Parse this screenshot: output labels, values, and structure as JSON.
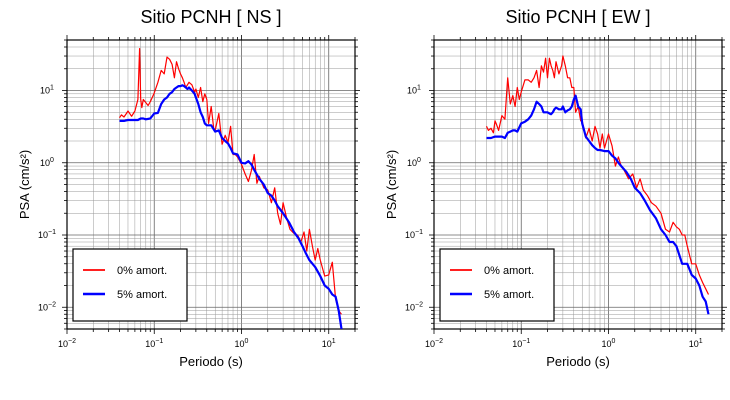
{
  "chart_data": [
    {
      "type": "line",
      "title": "Sitio PCNH [ NS ]",
      "xlabel": "Periodo (s)",
      "ylabel": "PSA (cm/s²)",
      "xscale": "log",
      "yscale": "log",
      "xlim": [
        0.01,
        20
      ],
      "ylim": [
        0.005,
        50
      ],
      "grid": true,
      "legend_position": "bottom-left",
      "x_ticks": [
        {
          "v": 0.01,
          "b": "10",
          "e": "−2"
        },
        {
          "v": 0.1,
          "b": "10",
          "e": "−1"
        },
        {
          "v": 1,
          "b": "10",
          "e": "0"
        },
        {
          "v": 10,
          "b": "10",
          "e": "1"
        }
      ],
      "y_ticks": [
        {
          "v": 0.01,
          "b": "10",
          "e": "−2"
        },
        {
          "v": 0.1,
          "b": "10",
          "e": "−1"
        },
        {
          "v": 1,
          "b": "10",
          "e": "0"
        },
        {
          "v": 10,
          "b": "10",
          "e": "1"
        }
      ],
      "series": [
        {
          "name": "0% amort.",
          "color": "#ff0000",
          "x": [
            0.04,
            0.042,
            0.045,
            0.048,
            0.05,
            0.055,
            0.06,
            0.065,
            0.068,
            0.07,
            0.072,
            0.075,
            0.08,
            0.085,
            0.09,
            0.1,
            0.11,
            0.12,
            0.13,
            0.14,
            0.15,
            0.16,
            0.17,
            0.18,
            0.19,
            0.2,
            0.21,
            0.22,
            0.23,
            0.25,
            0.27,
            0.29,
            0.3,
            0.32,
            0.34,
            0.36,
            0.38,
            0.4,
            0.42,
            0.45,
            0.48,
            0.5,
            0.55,
            0.6,
            0.65,
            0.7,
            0.75,
            0.8,
            0.85,
            0.9,
            1.0,
            1.1,
            1.2,
            1.3,
            1.4,
            1.5,
            1.6,
            1.8,
            2.0,
            2.2,
            2.4,
            2.6,
            2.8,
            3.0,
            3.3,
            3.6,
            4.0,
            4.4,
            4.8,
            5.2,
            5.6,
            6.0,
            6.5,
            7.0,
            7.5,
            8.0,
            9.0,
            10,
            11,
            12,
            13,
            14
          ],
          "y": [
            4.2,
            4.6,
            4.3,
            4.8,
            5.2,
            4.4,
            5.2,
            7.5,
            38,
            7.5,
            5.8,
            7.5,
            6.8,
            6.2,
            7.0,
            9.2,
            13,
            19,
            17,
            29,
            27,
            23,
            15,
            25,
            20,
            17,
            15,
            13,
            11,
            13,
            12,
            9.5,
            10.5,
            8,
            11,
            7,
            9,
            7.5,
            3.5,
            6,
            3.0,
            2.8,
            4.8,
            1.8,
            2.4,
            1.9,
            3.2,
            1.3,
            1.3,
            1.2,
            0.95,
            0.7,
            0.55,
            0.78,
            1.3,
            0.52,
            0.65,
            0.45,
            0.42,
            0.28,
            0.45,
            0.2,
            0.14,
            0.28,
            0.17,
            0.12,
            0.105,
            0.1,
            0.08,
            0.11,
            0.06,
            0.12,
            0.07,
            0.045,
            0.065,
            0.045,
            0.027,
            0.028,
            0.042,
            0.013,
            0.009,
            0.008
          ]
        },
        {
          "name": "5% amort.",
          "color": "#0000ff",
          "x": [
            0.04,
            0.045,
            0.05,
            0.055,
            0.06,
            0.065,
            0.07,
            0.075,
            0.08,
            0.09,
            0.1,
            0.11,
            0.12,
            0.13,
            0.14,
            0.15,
            0.16,
            0.17,
            0.18,
            0.19,
            0.2,
            0.21,
            0.22,
            0.23,
            0.24,
            0.25,
            0.27,
            0.29,
            0.3,
            0.32,
            0.34,
            0.36,
            0.38,
            0.4,
            0.45,
            0.5,
            0.55,
            0.6,
            0.65,
            0.7,
            0.75,
            0.8,
            0.9,
            1.0,
            1.1,
            1.2,
            1.3,
            1.4,
            1.6,
            1.8,
            2.0,
            2.2,
            2.4,
            2.6,
            3.0,
            3.5,
            4.0,
            4.5,
            5.0,
            5.5,
            6.0,
            7.0,
            8.0,
            9.0,
            10,
            11,
            12,
            13,
            14
          ],
          "y": [
            3.8,
            3.8,
            3.9,
            3.9,
            3.9,
            3.9,
            4.1,
            4.1,
            4.0,
            4.1,
            4.8,
            4.9,
            6.5,
            7.5,
            8.0,
            9.0,
            9.5,
            10.5,
            11,
            11.5,
            11.5,
            11.8,
            11.5,
            11.0,
            10.5,
            11.0,
            10.0,
            9.0,
            8.0,
            6.5,
            5.0,
            4.3,
            3.5,
            3.3,
            3.3,
            2.7,
            2.8,
            2.2,
            2.0,
            1.85,
            1.6,
            1.35,
            1.3,
            1.0,
            0.98,
            1.05,
            0.95,
            0.8,
            0.6,
            0.5,
            0.38,
            0.35,
            0.3,
            0.25,
            0.2,
            0.15,
            0.11,
            0.09,
            0.07,
            0.055,
            0.045,
            0.036,
            0.027,
            0.02,
            0.018,
            0.015,
            0.014,
            0.009,
            0.005
          ]
        }
      ]
    },
    {
      "type": "line",
      "title": "Sitio PCNH [ EW ]",
      "xlabel": "Periodo (s)",
      "ylabel": "PSA (cm/s²)",
      "xscale": "log",
      "yscale": "log",
      "xlim": [
        0.01,
        20
      ],
      "ylim": [
        0.005,
        50
      ],
      "grid": true,
      "legend_position": "bottom-left",
      "x_ticks": [
        {
          "v": 0.01,
          "b": "10",
          "e": "−2"
        },
        {
          "v": 0.1,
          "b": "10",
          "e": "−1"
        },
        {
          "v": 1,
          "b": "10",
          "e": "0"
        },
        {
          "v": 10,
          "b": "10",
          "e": "1"
        }
      ],
      "y_ticks": [
        {
          "v": 0.01,
          "b": "10",
          "e": "−2"
        },
        {
          "v": 0.1,
          "b": "10",
          "e": "−1"
        },
        {
          "v": 1,
          "b": "10",
          "e": "0"
        },
        {
          "v": 10,
          "b": "10",
          "e": "1"
        }
      ],
      "series": [
        {
          "name": "0% amort.",
          "color": "#ff0000",
          "x": [
            0.04,
            0.042,
            0.045,
            0.048,
            0.05,
            0.052,
            0.055,
            0.06,
            0.065,
            0.07,
            0.075,
            0.08,
            0.085,
            0.09,
            0.095,
            0.1,
            0.11,
            0.12,
            0.13,
            0.14,
            0.15,
            0.16,
            0.17,
            0.18,
            0.19,
            0.2,
            0.21,
            0.22,
            0.23,
            0.24,
            0.25,
            0.27,
            0.29,
            0.3,
            0.32,
            0.34,
            0.36,
            0.38,
            0.4,
            0.42,
            0.45,
            0.48,
            0.5,
            0.55,
            0.6,
            0.65,
            0.7,
            0.75,
            0.8,
            0.85,
            0.9,
            1.0,
            1.1,
            1.2,
            1.3,
            1.4,
            1.5,
            1.7,
            1.9,
            2.1,
            2.3,
            2.5,
            2.8,
            3.1,
            3.5,
            4.0,
            4.5,
            5.0,
            5.5,
            6.0,
            6.5,
            7.0,
            7.5,
            8.0,
            9.0,
            10,
            11,
            12,
            13,
            14
          ],
          "y": [
            3.2,
            2.8,
            3.0,
            2.6,
            3.8,
            3.4,
            2.8,
            4.5,
            4.0,
            15,
            6.5,
            8.5,
            6.0,
            11,
            7.5,
            9.5,
            14,
            14,
            13,
            15,
            19,
            11,
            22,
            18,
            28,
            15,
            28,
            22,
            19,
            15,
            25,
            17,
            22,
            30,
            22,
            15,
            15,
            11,
            11,
            5,
            6,
            3.8,
            3.8,
            2.2,
            3.0,
            2.0,
            3.2,
            2.5,
            1.6,
            2.5,
            1.6,
            2.5,
            1.7,
            0.9,
            1.2,
            0.9,
            0.8,
            0.6,
            0.7,
            0.45,
            0.6,
            0.42,
            0.35,
            0.28,
            0.25,
            0.2,
            0.12,
            0.11,
            0.15,
            0.13,
            0.12,
            0.1,
            0.1,
            0.07,
            0.04,
            0.04,
            0.028,
            0.022,
            0.018,
            0.015
          ]
        },
        {
          "name": "5% amort.",
          "color": "#0000ff",
          "x": [
            0.04,
            0.045,
            0.05,
            0.055,
            0.06,
            0.065,
            0.07,
            0.075,
            0.08,
            0.085,
            0.09,
            0.1,
            0.11,
            0.12,
            0.13,
            0.14,
            0.15,
            0.16,
            0.17,
            0.18,
            0.19,
            0.2,
            0.21,
            0.22,
            0.23,
            0.24,
            0.25,
            0.27,
            0.29,
            0.3,
            0.32,
            0.34,
            0.36,
            0.38,
            0.4,
            0.42,
            0.45,
            0.48,
            0.5,
            0.55,
            0.6,
            0.65,
            0.7,
            0.75,
            0.8,
            0.9,
            1.0,
            1.1,
            1.2,
            1.3,
            1.4,
            1.6,
            1.8,
            2.0,
            2.3,
            2.6,
            3.0,
            3.5,
            4.0,
            4.5,
            5.0,
            5.5,
            6.0,
            7.0,
            8.0,
            9.0,
            10,
            11,
            12,
            13,
            14
          ],
          "y": [
            2.2,
            2.2,
            2.3,
            2.3,
            2.3,
            2.2,
            2.6,
            2.7,
            2.8,
            2.8,
            2.7,
            3.5,
            3.7,
            4.0,
            4.5,
            5.5,
            7.0,
            6.5,
            6.0,
            5.0,
            5.0,
            5.0,
            4.8,
            4.7,
            5.0,
            5.5,
            5.8,
            5.5,
            5.5,
            6.0,
            5.0,
            5.3,
            5.5,
            6.0,
            7.5,
            8.5,
            6.0,
            5.5,
            3.5,
            2.3,
            2.0,
            1.75,
            1.6,
            1.5,
            1.5,
            1.45,
            1.45,
            1.25,
            1.15,
            1.0,
            0.9,
            0.75,
            0.6,
            0.45,
            0.38,
            0.3,
            0.22,
            0.17,
            0.12,
            0.1,
            0.08,
            0.08,
            0.07,
            0.04,
            0.04,
            0.028,
            0.025,
            0.02,
            0.014,
            0.012,
            0.008
          ]
        }
      ]
    }
  ]
}
